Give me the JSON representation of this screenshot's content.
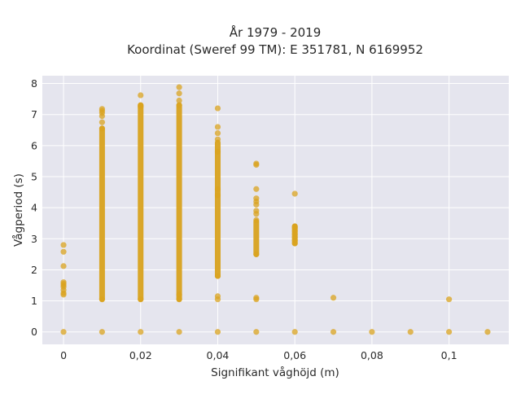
{
  "chart_data": {
    "type": "scatter",
    "title": "År 1979 - 2019",
    "subtitle": "Koordinat (Sweref 99 TM): E 351781, N 6169952",
    "xlabel": "Signifikant våghöjd (m)",
    "ylabel": "Vågperiod (s)",
    "xlim": [
      -0.0055,
      0.1155
    ],
    "ylim": [
      -0.4,
      8.25
    ],
    "x_ticks": [
      0,
      0.02,
      0.04,
      0.06,
      0.08,
      0.1
    ],
    "x_tick_labels": [
      "0",
      "0,02",
      "0,04",
      "0,06",
      "0,08",
      "0,1"
    ],
    "y_ticks": [
      0,
      1,
      2,
      3,
      4,
      5,
      6,
      7,
      8
    ],
    "y_tick_labels": [
      "0",
      "1",
      "2",
      "3",
      "4",
      "5",
      "6",
      "7",
      "8"
    ],
    "grid": true,
    "colors": {
      "marker": "#d9a31f",
      "plot_bg": "#e5e5ee",
      "grid": "#ffffff"
    },
    "columns": [
      {
        "x": 0.0,
        "points": [
          0,
          1.2,
          1.25,
          1.35,
          1.45,
          1.5,
          1.55,
          1.6,
          2.12,
          2.58,
          2.8
        ],
        "ranges": []
      },
      {
        "x": 0.01,
        "points": [
          0,
          1.05,
          6.55,
          6.75,
          6.95,
          7.05,
          7.12,
          7.18
        ],
        "ranges": [
          [
            1.05,
            6.55
          ]
        ]
      },
      {
        "x": 0.02,
        "points": [
          0,
          1.05,
          7.25,
          7.3,
          7.62
        ],
        "ranges": [
          [
            1.05,
            7.3
          ]
        ]
      },
      {
        "x": 0.03,
        "points": [
          0,
          1.05,
          1.2,
          7.3,
          7.45,
          7.68,
          7.88
        ],
        "ranges": [
          [
            1.05,
            7.3
          ]
        ]
      },
      {
        "x": 0.04,
        "points": [
          0,
          1.05,
          1.15,
          1.8,
          4.4,
          4.6,
          5.8,
          6.2,
          6.4,
          6.6,
          7.2
        ],
        "ranges": [
          [
            1.8,
            6.1
          ]
        ]
      },
      {
        "x": 0.05,
        "points": [
          0,
          1.05,
          1.1,
          2.5,
          3.6,
          3.8,
          3.9,
          4.1,
          4.2,
          4.3,
          4.6,
          5.38,
          5.42
        ],
        "ranges": [
          [
            2.5,
            3.55
          ]
        ]
      },
      {
        "x": 0.06,
        "points": [
          0,
          2.85,
          2.95,
          3.05,
          3.15,
          3.25,
          3.35,
          3.4,
          4.45
        ],
        "ranges": [
          [
            2.85,
            3.4
          ]
        ]
      },
      {
        "x": 0.07,
        "points": [
          0,
          1.1
        ],
        "ranges": []
      },
      {
        "x": 0.08,
        "points": [
          0
        ],
        "ranges": []
      },
      {
        "x": 0.09,
        "points": [
          0
        ],
        "ranges": []
      },
      {
        "x": 0.1,
        "points": [
          0,
          1.05
        ],
        "ranges": []
      },
      {
        "x": 0.11,
        "points": [
          0
        ],
        "ranges": []
      }
    ]
  }
}
